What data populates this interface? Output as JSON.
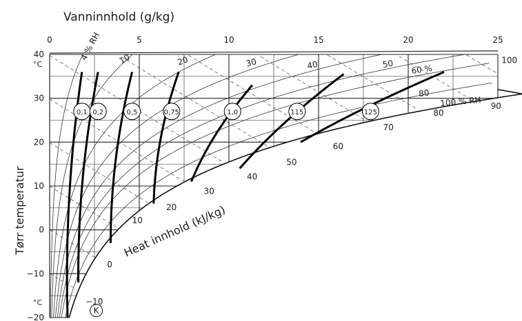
{
  "title": "Vanninnhold (g/kg)",
  "ylabel": "Tørr temperatur",
  "heat_label": "Heat innhold (kJ/kg)",
  "x_ticks": [
    "0",
    "5",
    "10",
    "15",
    "20",
    "25"
  ],
  "y_ticks": [
    "40",
    "30",
    "20",
    "10",
    "0",
    "−10",
    "−20"
  ],
  "unit_top": "°C",
  "unit_bottom": "°C",
  "rh_labels": [
    "4 % RH",
    "10",
    "20",
    "30",
    "40",
    "50",
    "60 %",
    "80",
    "100 % RH"
  ],
  "enthalpy_labels": [
    "−10",
    "0",
    "10",
    "20",
    "30",
    "40",
    "50",
    "60",
    "70",
    "80",
    "90",
    "100"
  ],
  "circle_labels": [
    "0,1",
    "0,2",
    "0,5",
    "0,75",
    "1,0",
    "115",
    "125"
  ],
  "k_label": "K",
  "chart_data": {
    "type": "psychrometric",
    "x_axis": {
      "label": "Vanninnhold (g/kg)",
      "range": [
        0,
        25
      ]
    },
    "y_axis": {
      "label": "Tørr temperatur",
      "unit": "°C",
      "range": [
        -20,
        40
      ]
    },
    "relative_humidity_curves_percent": [
      4,
      10,
      20,
      30,
      40,
      50,
      60,
      80,
      100
    ],
    "enthalpy_lines_kJ_per_kg": [
      -10,
      0,
      10,
      20,
      30,
      40,
      50,
      60,
      70,
      80,
      90,
      100
    ],
    "heavy_curve_labels": [
      "0,1",
      "0,2",
      "0,5",
      "0,75",
      "1,0",
      "115",
      "125"
    ],
    "point_label": "K"
  }
}
